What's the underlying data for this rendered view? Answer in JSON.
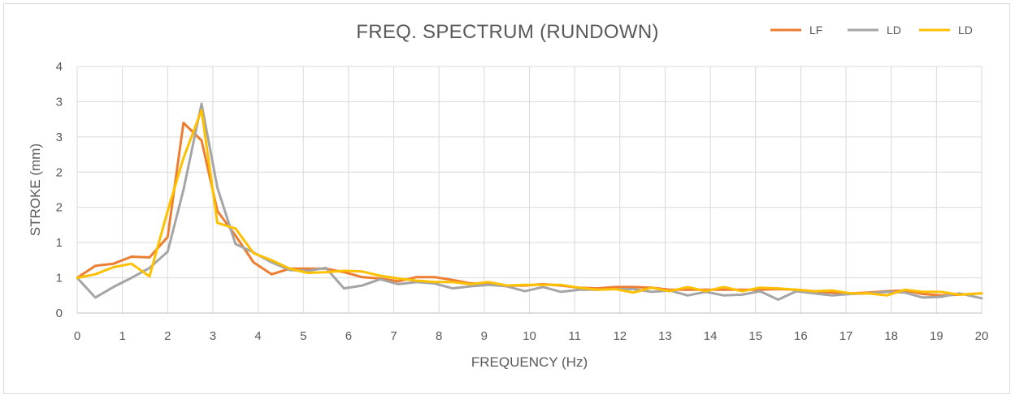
{
  "chart_data": {
    "type": "line",
    "title": "FREQ. SPECTRUM (RUNDOWN)",
    "xlabel": "FREQUENCY (Hz)",
    "ylabel": "STROKE (mm)",
    "xlim": [
      0,
      20
    ],
    "ylim": [
      0,
      3.5
    ],
    "x_ticks": [
      "0",
      "1",
      "2",
      "3",
      "4",
      "5",
      "6",
      "7",
      "8",
      "9",
      "10",
      "11",
      "12",
      "13",
      "14",
      "15",
      "16",
      "17",
      "18",
      "19",
      "20"
    ],
    "y_ticks": [
      "0",
      "1",
      "1",
      "2",
      "2",
      "3",
      "3",
      "4"
    ],
    "grid": true,
    "legend_position": "top-right",
    "series": [
      {
        "name": "LF",
        "color": "#ed7d31",
        "x": [
          0,
          0.4,
          0.8,
          1.2,
          1.6,
          2.0,
          2.35,
          2.75,
          3.1,
          3.5,
          3.9,
          4.3,
          4.7,
          5.1,
          5.5,
          5.9,
          6.3,
          6.7,
          7.1,
          7.5,
          7.9,
          8.3,
          8.7,
          9.1,
          9.5,
          9.9,
          10.3,
          10.7,
          11.1,
          11.5,
          11.9,
          12.3,
          12.7,
          13.1,
          13.5,
          13.9,
          14.3,
          14.7,
          15.1,
          15.5,
          15.9,
          16.3,
          16.7,
          17.1,
          17.5,
          17.9,
          18.3,
          18.7,
          19.1,
          19.5,
          20
        ],
        "y": [
          0.5,
          0.67,
          0.7,
          0.8,
          0.79,
          1.08,
          2.7,
          2.45,
          1.45,
          1.1,
          0.72,
          0.55,
          0.63,
          0.63,
          0.63,
          0.58,
          0.51,
          0.49,
          0.45,
          0.51,
          0.51,
          0.47,
          0.42,
          0.42,
          0.39,
          0.39,
          0.41,
          0.39,
          0.36,
          0.35,
          0.37,
          0.37,
          0.36,
          0.33,
          0.33,
          0.33,
          0.33,
          0.33,
          0.33,
          0.34,
          0.33,
          0.31,
          0.29,
          0.28,
          0.29,
          0.31,
          0.32,
          0.27,
          0.25,
          0.26,
          0.28
        ]
      },
      {
        "name": "LD",
        "color": "#a5a5a5",
        "x": [
          0,
          0.4,
          0.8,
          1.2,
          1.6,
          2.0,
          2.35,
          2.75,
          3.1,
          3.5,
          3.9,
          4.3,
          4.7,
          5.1,
          5.5,
          5.9,
          6.3,
          6.7,
          7.1,
          7.5,
          7.9,
          8.3,
          8.7,
          9.1,
          9.5,
          9.9,
          10.3,
          10.7,
          11.1,
          11.5,
          11.9,
          12.3,
          12.7,
          13.1,
          13.5,
          13.9,
          14.3,
          14.7,
          15.1,
          15.5,
          15.9,
          16.3,
          16.7,
          17.1,
          17.5,
          17.9,
          18.3,
          18.7,
          19.1,
          19.5,
          20
        ],
        "y": [
          0.5,
          0.22,
          0.37,
          0.5,
          0.64,
          0.87,
          1.75,
          2.97,
          1.78,
          0.98,
          0.86,
          0.72,
          0.61,
          0.6,
          0.64,
          0.35,
          0.39,
          0.48,
          0.41,
          0.44,
          0.42,
          0.35,
          0.38,
          0.4,
          0.38,
          0.31,
          0.37,
          0.3,
          0.33,
          0.33,
          0.34,
          0.34,
          0.3,
          0.32,
          0.25,
          0.3,
          0.25,
          0.26,
          0.31,
          0.19,
          0.31,
          0.28,
          0.25,
          0.27,
          0.28,
          0.3,
          0.29,
          0.22,
          0.23,
          0.28,
          0.21
        ]
      },
      {
        "name": "LD",
        "color": "#ffc000",
        "x": [
          0,
          0.4,
          0.8,
          1.2,
          1.6,
          2.0,
          2.35,
          2.75,
          3.1,
          3.5,
          3.9,
          4.3,
          4.7,
          5.1,
          5.5,
          5.9,
          6.3,
          6.7,
          7.1,
          7.5,
          7.9,
          8.3,
          8.7,
          9.1,
          9.5,
          9.9,
          10.3,
          10.7,
          11.1,
          11.5,
          11.9,
          12.3,
          12.7,
          13.1,
          13.5,
          13.9,
          14.3,
          14.7,
          15.1,
          15.5,
          15.9,
          16.3,
          16.7,
          17.1,
          17.5,
          17.9,
          18.3,
          18.7,
          19.1,
          19.5,
          20
        ],
        "y": [
          0.5,
          0.55,
          0.65,
          0.7,
          0.52,
          1.45,
          2.2,
          2.88,
          1.28,
          1.2,
          0.85,
          0.75,
          0.63,
          0.57,
          0.58,
          0.6,
          0.59,
          0.53,
          0.49,
          0.46,
          0.44,
          0.44,
          0.41,
          0.44,
          0.39,
          0.4,
          0.4,
          0.4,
          0.36,
          0.33,
          0.34,
          0.29,
          0.36,
          0.31,
          0.37,
          0.31,
          0.37,
          0.31,
          0.36,
          0.35,
          0.33,
          0.31,
          0.32,
          0.28,
          0.28,
          0.25,
          0.33,
          0.3,
          0.3,
          0.26,
          0.28
        ]
      }
    ]
  }
}
